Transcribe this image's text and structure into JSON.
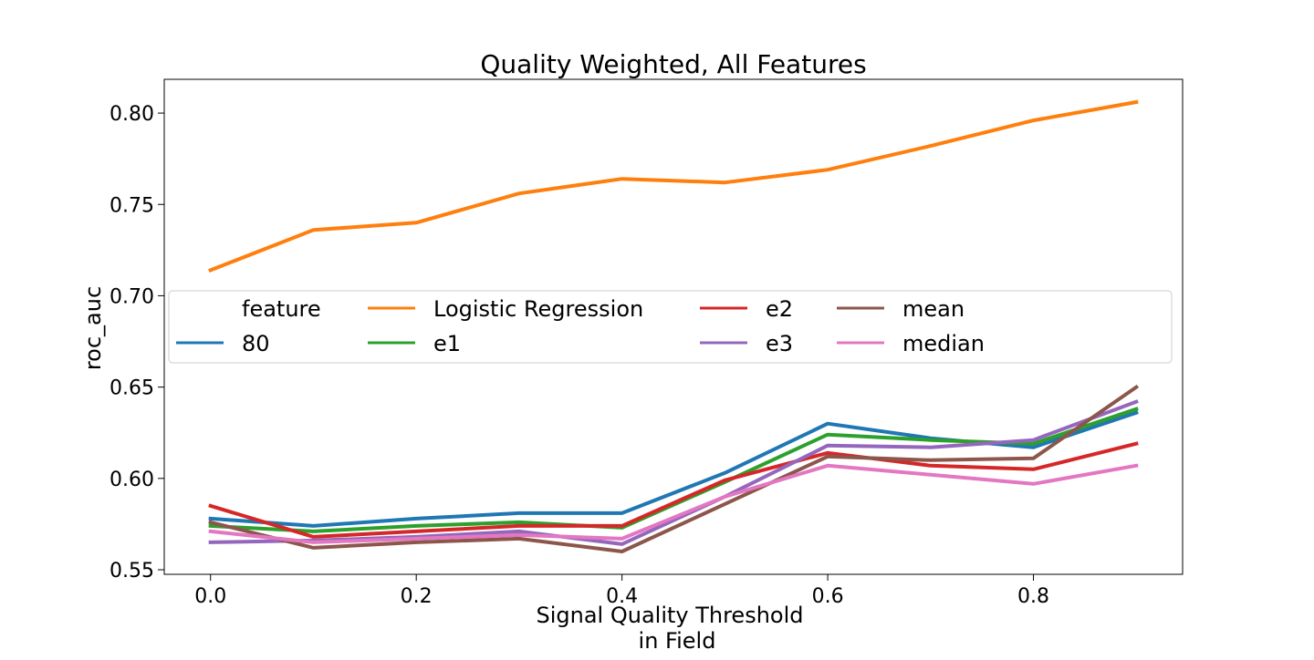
{
  "chart_data": {
    "type": "line",
    "title": "Quality Weighted, All Features",
    "xlabel_lines": [
      "Signal Quality Threshold",
      "in Field"
    ],
    "ylabel": "roc_auc",
    "xlim": [
      -0.045,
      0.945
    ],
    "ylim": [
      0.5475,
      0.8185
    ],
    "xticks": [
      {
        "value": 0.0,
        "label": "0.0"
      },
      {
        "value": 0.2,
        "label": "0.2"
      },
      {
        "value": 0.4,
        "label": "0.4"
      },
      {
        "value": 0.6,
        "label": "0.6"
      },
      {
        "value": 0.8,
        "label": "0.8"
      }
    ],
    "yticks": [
      {
        "value": 0.55,
        "label": "0.55"
      },
      {
        "value": 0.6,
        "label": "0.60"
      },
      {
        "value": 0.65,
        "label": "0.65"
      },
      {
        "value": 0.7,
        "label": "0.70"
      },
      {
        "value": 0.75,
        "label": "0.75"
      },
      {
        "value": 0.8,
        "label": "0.80"
      }
    ],
    "grid": false,
    "legend_title": "feature",
    "legend_placement": "center, spanning width",
    "x": [
      0.0,
      0.1,
      0.2,
      0.3,
      0.4,
      0.5,
      0.6,
      0.7,
      0.8,
      0.9
    ],
    "series": [
      {
        "name": "80",
        "color": "#1f77b4",
        "values": [
          0.578,
          0.574,
          0.578,
          0.581,
          0.581,
          0.603,
          0.63,
          0.622,
          0.617,
          0.636
        ]
      },
      {
        "name": "Logistic Regression",
        "color": "#ff7f0e",
        "values": [
          0.714,
          0.736,
          0.74,
          0.756,
          0.764,
          0.762,
          0.769,
          0.782,
          0.796,
          0.806
        ]
      },
      {
        "name": "e1",
        "color": "#2ca02c",
        "values": [
          0.574,
          0.571,
          0.574,
          0.576,
          0.573,
          0.598,
          0.624,
          0.621,
          0.619,
          0.638
        ]
      },
      {
        "name": "e2",
        "color": "#d62728",
        "values": [
          0.585,
          0.568,
          0.571,
          0.574,
          0.574,
          0.599,
          0.614,
          0.607,
          0.605,
          0.619
        ]
      },
      {
        "name": "e3",
        "color": "#9467bd",
        "values": [
          0.565,
          0.566,
          0.568,
          0.571,
          0.564,
          0.59,
          0.618,
          0.617,
          0.621,
          0.642
        ]
      },
      {
        "name": "mean",
        "color": "#8c564b",
        "values": [
          0.576,
          0.562,
          0.565,
          0.567,
          0.56,
          0.586,
          0.612,
          0.61,
          0.611,
          0.65
        ]
      },
      {
        "name": "median",
        "color": "#e377c2",
        "values": [
          0.571,
          0.565,
          0.567,
          0.569,
          0.567,
          0.59,
          0.607,
          0.602,
          0.597,
          0.607
        ]
      }
    ]
  }
}
